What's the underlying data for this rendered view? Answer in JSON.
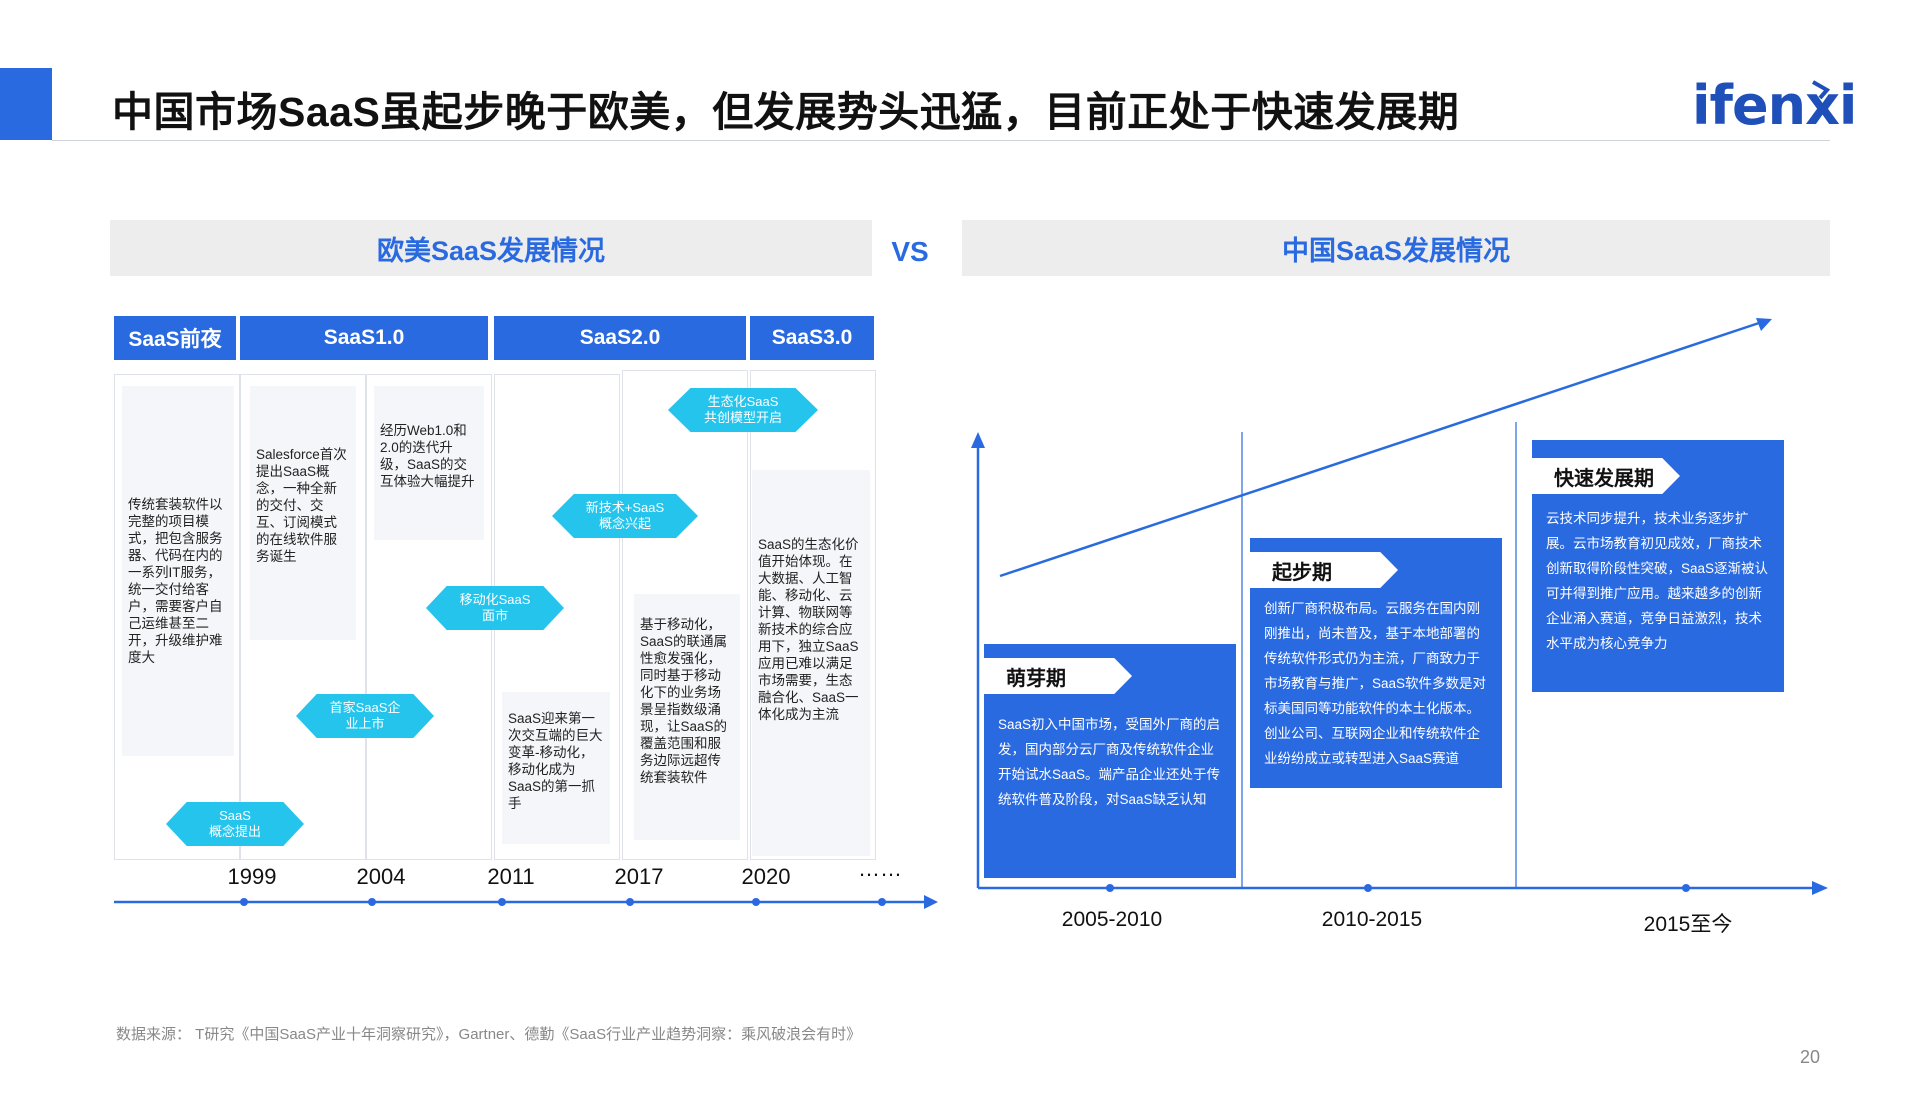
{
  "header": {
    "title": "中国市场SaaS虽起步晚于欧美，但发展势头迅猛，目前正处于快速发展期",
    "logo_text": "ifenxi"
  },
  "left": {
    "heading": "欧美SaaS发展情况",
    "phases": [
      "SaaS前夜",
      "SaaS1.0",
      "SaaS2.0",
      "SaaS3.0"
    ],
    "notes": [
      "传统套装软件以完整的项目模式，把包含服务器、代码在内的一系列IT服务，统一交付给客户，需要客户自己运维甚至二开，升级维护难度大",
      "Salesforce首次提出SaaS概念，一种全新的交付、交互、订阅模式的在线软件服务诞生",
      "经历Web1.0和2.0的迭代升级，SaaS的交互体验大幅提升",
      "SaaS迎来第一次交互端的巨大变革-移动化，移动化成为SaaS的第一抓手",
      "基于移动化，SaaS的联通属性愈发强化，同时基于移动化下的业务场景呈指数级涌现，让SaaS的覆盖范围和服务边际远超传统套装软件",
      "SaaS的生态化价值开始体现。在大数据、人工智能、移动化、云计算、物联网等新技术的综合应用下，独立SaaS应用已难以满足市场需要，生态融合化、SaaS一体化成为主流"
    ],
    "milestones": [
      "SaaS\n概念提出",
      "首家SaaS企\n业上市",
      "移动化SaaS\n面市",
      "新技术+SaaS\n概念兴起",
      "生态化SaaS\n共创模型开启"
    ],
    "years": [
      "1999",
      "2004",
      "2011",
      "2017",
      "2020",
      "……"
    ]
  },
  "vs": "VS",
  "right": {
    "heading": "中国SaaS发展情况",
    "stages": [
      {
        "tag": "萌芽期",
        "text": "SaaS初入中国市场，受国外厂商的启发，国内部分云厂商及传统软件企业开始试水SaaS。端产品企业还处于传统软件普及阶段，对SaaS缺乏认知"
      },
      {
        "tag": "起步期",
        "text": "创新厂商积极布局。云服务在国内刚刚推出，尚未普及，基于本地部署的传统软件形式仍为主流，厂商致力于市场教育与推广，SaaS软件多数是对标美国同等功能软件的本土化版本。创业公司、互联网企业和传统软件企业纷纷成立或转型进入SaaS赛道"
      },
      {
        "tag": "快速发展期",
        "text": "云技术同步提升，技术业务逐步扩展。云市场教育初见成效，厂商技术创新取得阶段性突破，SaaS逐渐被认可并得到推广应用。越来越多的创新企业涌入赛道，竞争日益激烈，技术水平成为核心竞争力"
      }
    ],
    "periods": [
      "2005-2010",
      "2010-2015",
      "2015至今"
    ]
  },
  "footer": {
    "source": "数据来源：   T研究《中国SaaS产业十年洞察研究》，Gartner、德勤《SaaS行业产业趋势洞察：乘风破浪会有时》",
    "page": "20"
  },
  "colors": {
    "primary": "#2a6ae0",
    "hex": "#25c4ec",
    "header_bg": "#ededed"
  }
}
